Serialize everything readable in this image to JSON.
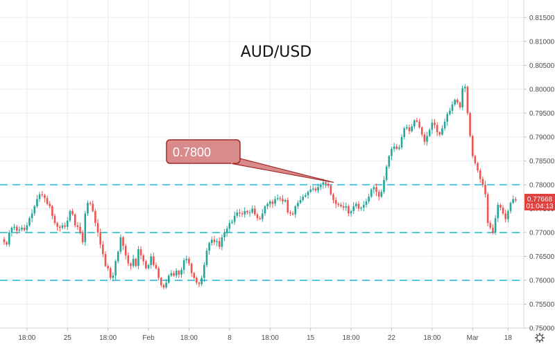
{
  "chart_data": {
    "type": "candlestick",
    "title": "AUD/USD",
    "y_axis": {
      "side": "right",
      "ylim": [
        0.75,
        0.82
      ],
      "ticks": [
        "0.75000",
        "0.75500",
        "0.76000",
        "0.76500",
        "0.77000",
        "0.77500",
        "0.78000",
        "0.78500",
        "0.79000",
        "0.79500",
        "0.80000",
        "0.80500",
        "0.81000",
        "0.81500"
      ]
    },
    "x_axis": {
      "ticks": [
        "18:00",
        "25",
        "18:00",
        "Feb",
        "18:00",
        "8",
        "18:00",
        "15",
        "18:00",
        "22",
        "18:00",
        "Mar",
        "18"
      ],
      "tick_index": [
        9,
        25,
        41,
        57,
        73,
        89,
        105,
        121,
        137,
        153,
        169,
        185,
        199
      ]
    },
    "grid": true,
    "horizontal_levels": [
      0.78,
      0.77,
      0.76
    ],
    "callout": {
      "label": "0.7800",
      "at_index": 130,
      "value": 0.7805
    },
    "last_price": {
      "value": "0.77668",
      "countdown": "01:04:13"
    },
    "colors": {
      "up": "#26a69a",
      "down": "#ef5350",
      "level_line": "#56c8d8",
      "callout_fill": "#d98a8a",
      "callout_border": "#a12a2a",
      "price_label_bg": "#e0413f",
      "grid": "#ececec"
    },
    "closes": [
      0.768,
      0.7675,
      0.77,
      0.771,
      0.7712,
      0.7704,
      0.7706,
      0.771,
      0.7705,
      0.7715,
      0.773,
      0.774,
      0.7755,
      0.777,
      0.778,
      0.7778,
      0.7772,
      0.776,
      0.7755,
      0.7735,
      0.772,
      0.7712,
      0.771,
      0.7715,
      0.7712,
      0.7725,
      0.7745,
      0.7738,
      0.7715,
      0.7712,
      0.77,
      0.768,
      0.774,
      0.7762,
      0.776,
      0.7745,
      0.772,
      0.77,
      0.7675,
      0.7655,
      0.763,
      0.7625,
      0.7605,
      0.761,
      0.764,
      0.766,
      0.769,
      0.7672,
      0.7652,
      0.7635,
      0.763,
      0.7645,
      0.763,
      0.7665,
      0.7652,
      0.764,
      0.7625,
      0.7632,
      0.765,
      0.7632,
      0.7625,
      0.7605,
      0.759,
      0.7585,
      0.7595,
      0.761,
      0.7615,
      0.761,
      0.762,
      0.7612,
      0.7622,
      0.7642,
      0.7645,
      0.7635,
      0.7615,
      0.7605,
      0.7595,
      0.7592,
      0.7605,
      0.7632,
      0.7662,
      0.7678,
      0.7685,
      0.768,
      0.7682,
      0.767,
      0.769,
      0.77,
      0.7708,
      0.772,
      0.7722,
      0.7735,
      0.7742,
      0.774,
      0.7738,
      0.7745,
      0.7742,
      0.7742,
      0.775,
      0.7738,
      0.773,
      0.7728,
      0.774,
      0.7755,
      0.776,
      0.7765,
      0.776,
      0.777,
      0.7772,
      0.777,
      0.7765,
      0.7768,
      0.7742,
      0.774,
      0.7738,
      0.7755,
      0.7762,
      0.7768,
      0.7775,
      0.7778,
      0.7785,
      0.779,
      0.7792,
      0.7788,
      0.7795,
      0.78,
      0.7805,
      0.7802,
      0.7798,
      0.778,
      0.7768,
      0.776,
      0.7758,
      0.7755,
      0.7752,
      0.7755,
      0.774,
      0.7745,
      0.7755,
      0.776,
      0.775,
      0.7752,
      0.7758,
      0.7765,
      0.7775,
      0.779,
      0.7795,
      0.7785,
      0.7775,
      0.7785,
      0.781,
      0.7838,
      0.786,
      0.7875,
      0.788,
      0.7875,
      0.7878,
      0.79,
      0.7918,
      0.792,
      0.7912,
      0.7922,
      0.7935,
      0.7932,
      0.792,
      0.7905,
      0.789,
      0.7902,
      0.7915,
      0.793,
      0.7925,
      0.791,
      0.7905,
      0.7918,
      0.7932,
      0.7948,
      0.7955,
      0.7968,
      0.7978,
      0.7972,
      0.7962,
      0.8002,
      0.8005,
      0.795,
      0.7902,
      0.786,
      0.7845,
      0.783,
      0.7812,
      0.78,
      0.778,
      0.772,
      0.771,
      0.77,
      0.773,
      0.7758,
      0.7752,
      0.774,
      0.7728,
      0.7745,
      0.7762,
      0.777,
      0.7767
    ]
  }
}
